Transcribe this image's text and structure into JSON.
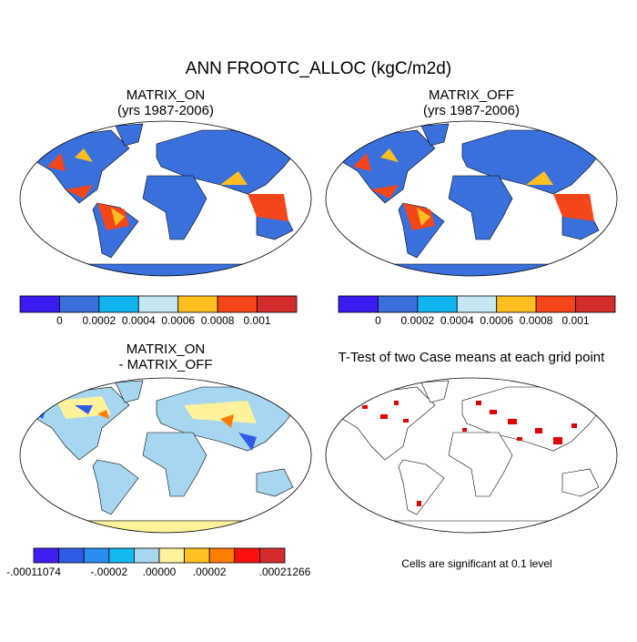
{
  "title": "ANN FROOTC_ALLOC (kgC/m2d)",
  "panels": [
    {
      "title": "MATRIX_ON",
      "subtitle": "(yrs 1987-2006)"
    },
    {
      "title": "MATRIX_OFF",
      "subtitle": "(yrs 1987-2006)"
    },
    {
      "title": "MATRIX_ON",
      "subtitle": "- MATRIX_OFF"
    },
    {
      "title": "T-Test of two Case means at each grid point"
    }
  ],
  "colorbars": [
    {
      "colors": [
        "#3b1cf0",
        "#3a70dc",
        "#10b4ee",
        "#c6e6f4",
        "#ffbe20",
        "#f5461a",
        "#d42c2c"
      ],
      "labels": [
        null,
        "0",
        "0.0002",
        "0.0004",
        "0.0006",
        "0.0008",
        "0.001",
        null
      ]
    },
    {
      "colors": [
        "#3b1cf0",
        "#3a70dc",
        "#10b4ee",
        "#c6e6f4",
        "#ffbe20",
        "#f5461a",
        "#d42c2c"
      ],
      "labels": [
        null,
        "0",
        "0.0002",
        "0.0004",
        "0.0006",
        "0.0008",
        "0.001",
        null
      ]
    },
    {
      "colors": [
        "#4020f0",
        "#2f5ce6",
        "#2a8ef0",
        "#12b8f0",
        "#a6d6f0",
        "#fff29a",
        "#ffc020",
        "#ff7e00",
        "#ff1010",
        "#d42c2c"
      ],
      "labels": [
        "-.00011074",
        null,
        null,
        "-.00002",
        null,
        ".00000",
        null,
        ".00002",
        null,
        null,
        ".00021266"
      ]
    }
  ],
  "note": "Cells are significant at 0.1 level"
}
